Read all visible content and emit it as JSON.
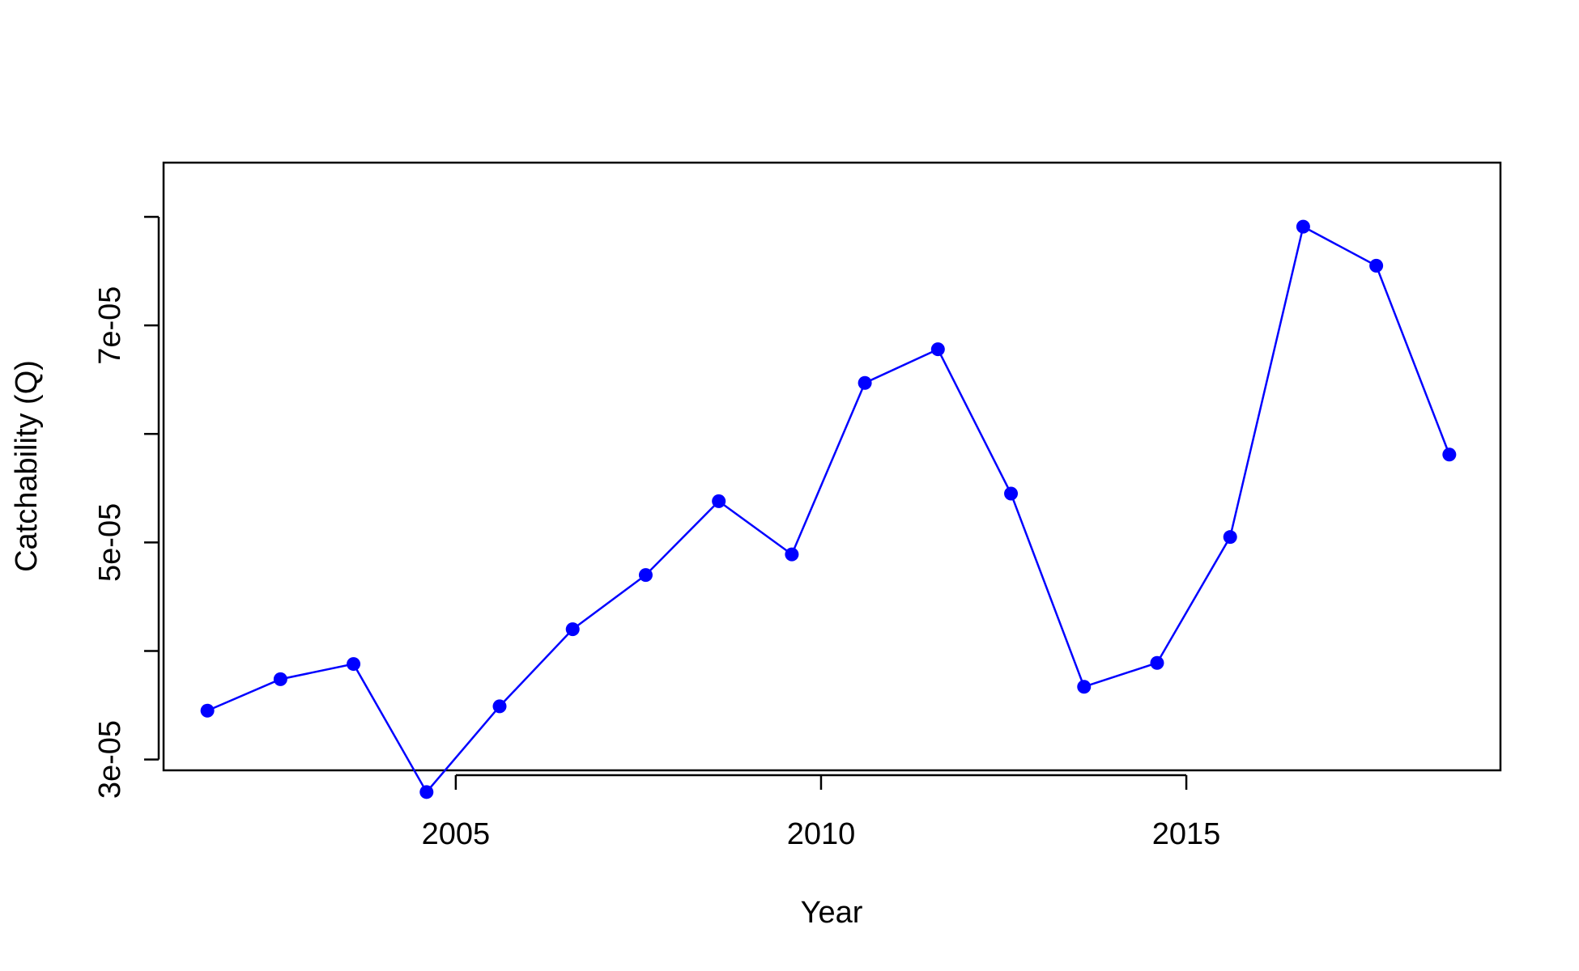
{
  "chart_data": {
    "type": "line",
    "title": "",
    "xlabel": "Year",
    "ylabel": "Catchability (Q)",
    "xlim": [
      2001.0,
      2019.3
    ],
    "ylim": [
      2.9e-05,
      8.5e-05
    ],
    "x_ticks": [
      2005,
      2010,
      2015
    ],
    "x_tick_labels": [
      "2005",
      "2010",
      "2015"
    ],
    "y_ticks": [
      3e-05,
      4e-05,
      5e-05,
      6e-05,
      7e-05,
      8e-05
    ],
    "y_tick_labels": [
      "3e-05",
      "",
      "5e-05",
      "",
      "7e-05",
      ""
    ],
    "grid": false,
    "legend": "none",
    "series": [
      {
        "color": "#0000ff",
        "x": [
          2001.6,
          2002.6,
          2003.6,
          2004.6,
          2005.6,
          2006.6,
          2007.6,
          2008.6,
          2009.6,
          2010.6,
          2011.6,
          2012.6,
          2013.6,
          2014.6,
          2015.6,
          2016.6,
          2017.6,
          2018.6
        ],
        "y": [
          3.45e-05,
          3.74e-05,
          3.88e-05,
          2.7e-05,
          3.49e-05,
          4.2e-05,
          4.7e-05,
          5.38e-05,
          4.89e-05,
          6.47e-05,
          6.78e-05,
          5.45e-05,
          3.67e-05,
          3.89e-05,
          5.05e-05,
          7.91e-05,
          7.55e-05,
          5.81e-05
        ]
      }
    ]
  }
}
